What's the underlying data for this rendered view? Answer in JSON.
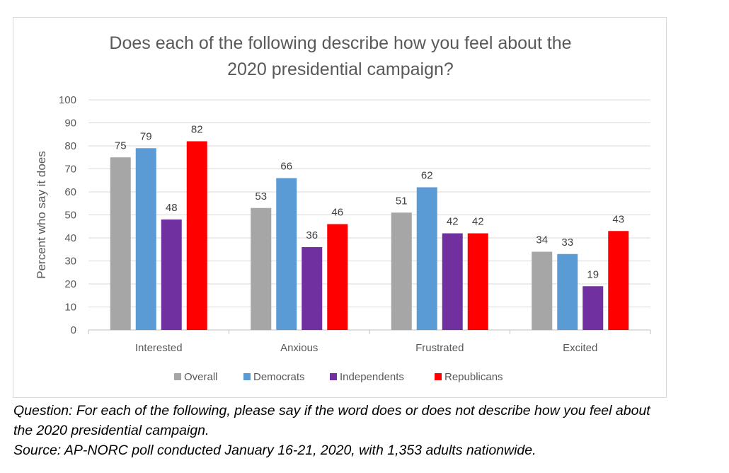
{
  "chart_data": {
    "type": "bar",
    "title": [
      "Does each of the following describe how you feel about the",
      "2020 presidential campaign?"
    ],
    "ylabel": "Percent who say it does",
    "xlabel": "",
    "ylim": [
      0,
      100
    ],
    "yticks": [
      "0",
      "10",
      "20",
      "30",
      "40",
      "50",
      "60",
      "70",
      "80",
      "90",
      "100"
    ],
    "categories": [
      "Interested",
      "Anxious",
      "Frustrated",
      "Excited"
    ],
    "series": [
      {
        "name": "Overall",
        "color": "#a6a6a6",
        "values": [
          75,
          53,
          51,
          34
        ]
      },
      {
        "name": "Democrats",
        "color": "#5b9bd5",
        "values": [
          79,
          66,
          62,
          33
        ]
      },
      {
        "name": "Independents",
        "color": "#7030a0",
        "values": [
          48,
          36,
          42,
          19
        ]
      },
      {
        "name": "Republicans",
        "color": "#ff0000",
        "values": [
          82,
          46,
          42,
          43
        ]
      }
    ],
    "grid": true,
    "legend": "bottom"
  },
  "notes": {
    "question_line1": "Question:  For each of the following, please say if the word does or does not describe how you feel about",
    "question_line2": "the 2020 presidential campaign.",
    "source": "Source: AP-NORC poll conducted January 16-21, 2020, with 1,353 adults nationwide."
  }
}
